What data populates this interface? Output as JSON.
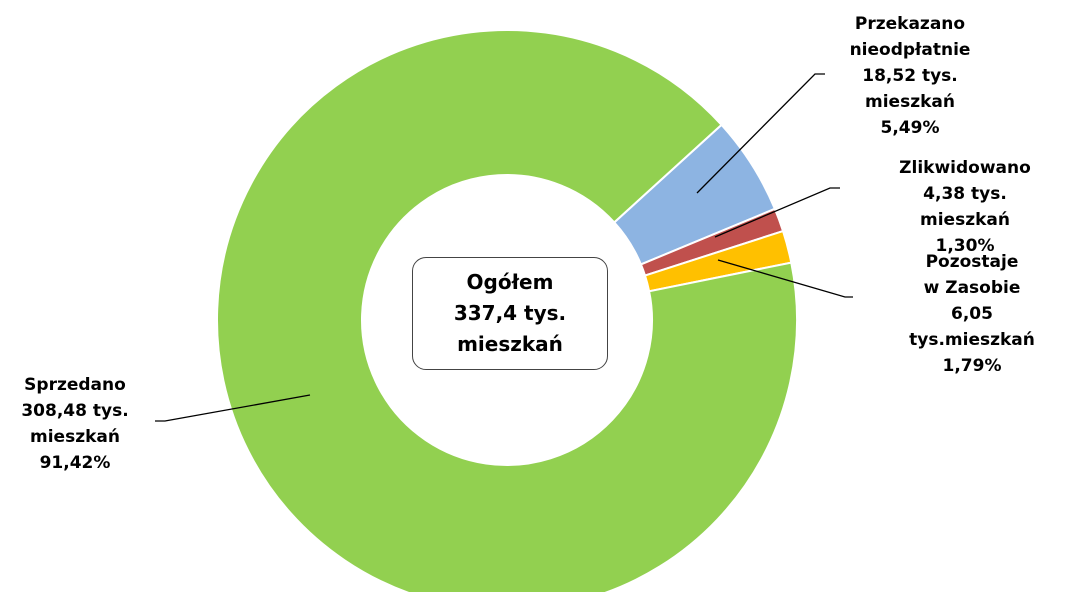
{
  "chart_data": {
    "type": "donut",
    "categories": [
      "Przekazano\nnieodpłatnie",
      "Zlikwidowano",
      "Pozostaje\nw Zasobie",
      "Sprzedano"
    ],
    "amount_labels": [
      "18,52 tys.\nmieszkań",
      "4,38 tys. mieszkań",
      "6,05 tys.mieszkań",
      "308,48 tys.\nmieszkań"
    ],
    "values": [
      5.49,
      1.3,
      1.79,
      91.42
    ],
    "value_labels": [
      "5,49%",
      "1,30%",
      "1,79%",
      "91,42%"
    ],
    "colors": [
      "#8db4e2",
      "#c0504d",
      "#ffc000",
      "#92d050"
    ],
    "center_label": "Ogółem\n337,4 tys.\nmieszkań"
  }
}
